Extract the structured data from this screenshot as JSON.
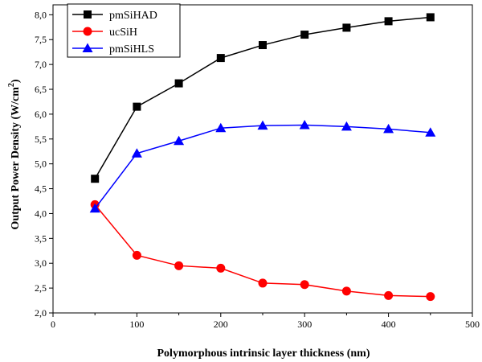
{
  "chart_data": {
    "type": "line",
    "title": "",
    "xlabel": "Polymorphous intrinsic layer thickness (nm)",
    "ylabel": "Output Power Density (W/cm",
    "ylabel_sup": "2",
    "ylabel_close": ")",
    "xlim": [
      0,
      500
    ],
    "ylim": [
      2.0,
      8.2
    ],
    "x_ticks": [
      0,
      100,
      200,
      300,
      400,
      500
    ],
    "x_tick_labels": [
      "0",
      "100",
      "200",
      "300",
      "400",
      "500"
    ],
    "y_ticks": [
      2.0,
      2.5,
      3.0,
      3.5,
      4.0,
      4.5,
      5.0,
      5.5,
      6.0,
      6.5,
      7.0,
      7.5,
      8.0
    ],
    "y_tick_labels": [
      "2,0",
      "2,5",
      "3,0",
      "3,5",
      "4,0",
      "4,5",
      "5,0",
      "5,5",
      "6,0",
      "6,5",
      "7,0",
      "7,5",
      "8,0"
    ],
    "grid": false,
    "legend_position": "top-left",
    "x": [
      50,
      100,
      150,
      200,
      250,
      300,
      350,
      400,
      450
    ],
    "series": [
      {
        "name": "pmSiHAD",
        "color": "#000000",
        "marker": "square",
        "values": [
          4.7,
          6.15,
          6.62,
          7.13,
          7.39,
          7.6,
          7.74,
          7.87,
          7.95
        ]
      },
      {
        "name": "ucSiH",
        "color": "#ff0000",
        "marker": "circle",
        "values": [
          4.18,
          3.16,
          2.95,
          2.9,
          2.6,
          2.57,
          2.44,
          2.35,
          2.33
        ]
      },
      {
        "name": "pmSiHLS",
        "color": "#0000ff",
        "marker": "triangle",
        "values": [
          4.1,
          5.21,
          5.46,
          5.72,
          5.77,
          5.78,
          5.75,
          5.7,
          5.63
        ]
      }
    ]
  }
}
